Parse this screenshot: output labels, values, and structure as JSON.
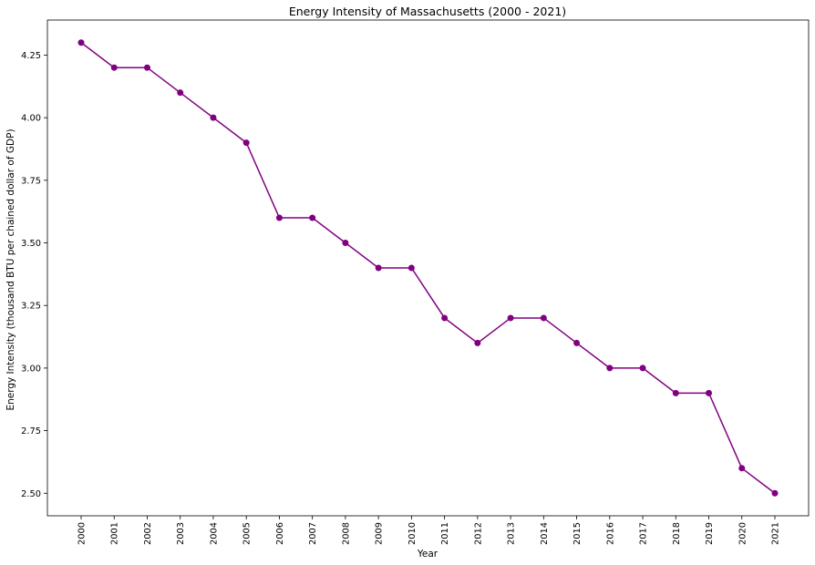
{
  "chart_data": {
    "type": "line",
    "title": "Energy Intensity of Massachusetts (2000 - 2021)",
    "xlabel": "Year",
    "ylabel": "Energy Intensity (thousand BTU per chained dollar of GDP)",
    "categories": [
      "2000",
      "2001",
      "2002",
      "2003",
      "2004",
      "2005",
      "2006",
      "2007",
      "2008",
      "2009",
      "2010",
      "2011",
      "2012",
      "2013",
      "2014",
      "2015",
      "2016",
      "2017",
      "2018",
      "2019",
      "2020",
      "2021"
    ],
    "series": [
      {
        "values": [
          4.3,
          4.2,
          4.2,
          4.1,
          4.0,
          3.9,
          3.6,
          3.6,
          3.5,
          3.4,
          3.4,
          3.2,
          3.1,
          3.2,
          3.2,
          3.1,
          3.0,
          3.0,
          2.9,
          2.9,
          2.6,
          2.5
        ],
        "color": "#800080",
        "marker": "circle"
      }
    ],
    "ylim": [
      2.41,
      4.39
    ],
    "yticks": [
      2.5,
      2.75,
      3.0,
      3.25,
      3.5,
      3.75,
      4.0,
      4.25
    ],
    "ytick_labels": [
      "2.50",
      "2.75",
      "3.00",
      "3.25",
      "3.50",
      "3.75",
      "4.00",
      "4.25"
    ],
    "xtick_rotation": "vertical",
    "grid": false,
    "legend": "none"
  }
}
